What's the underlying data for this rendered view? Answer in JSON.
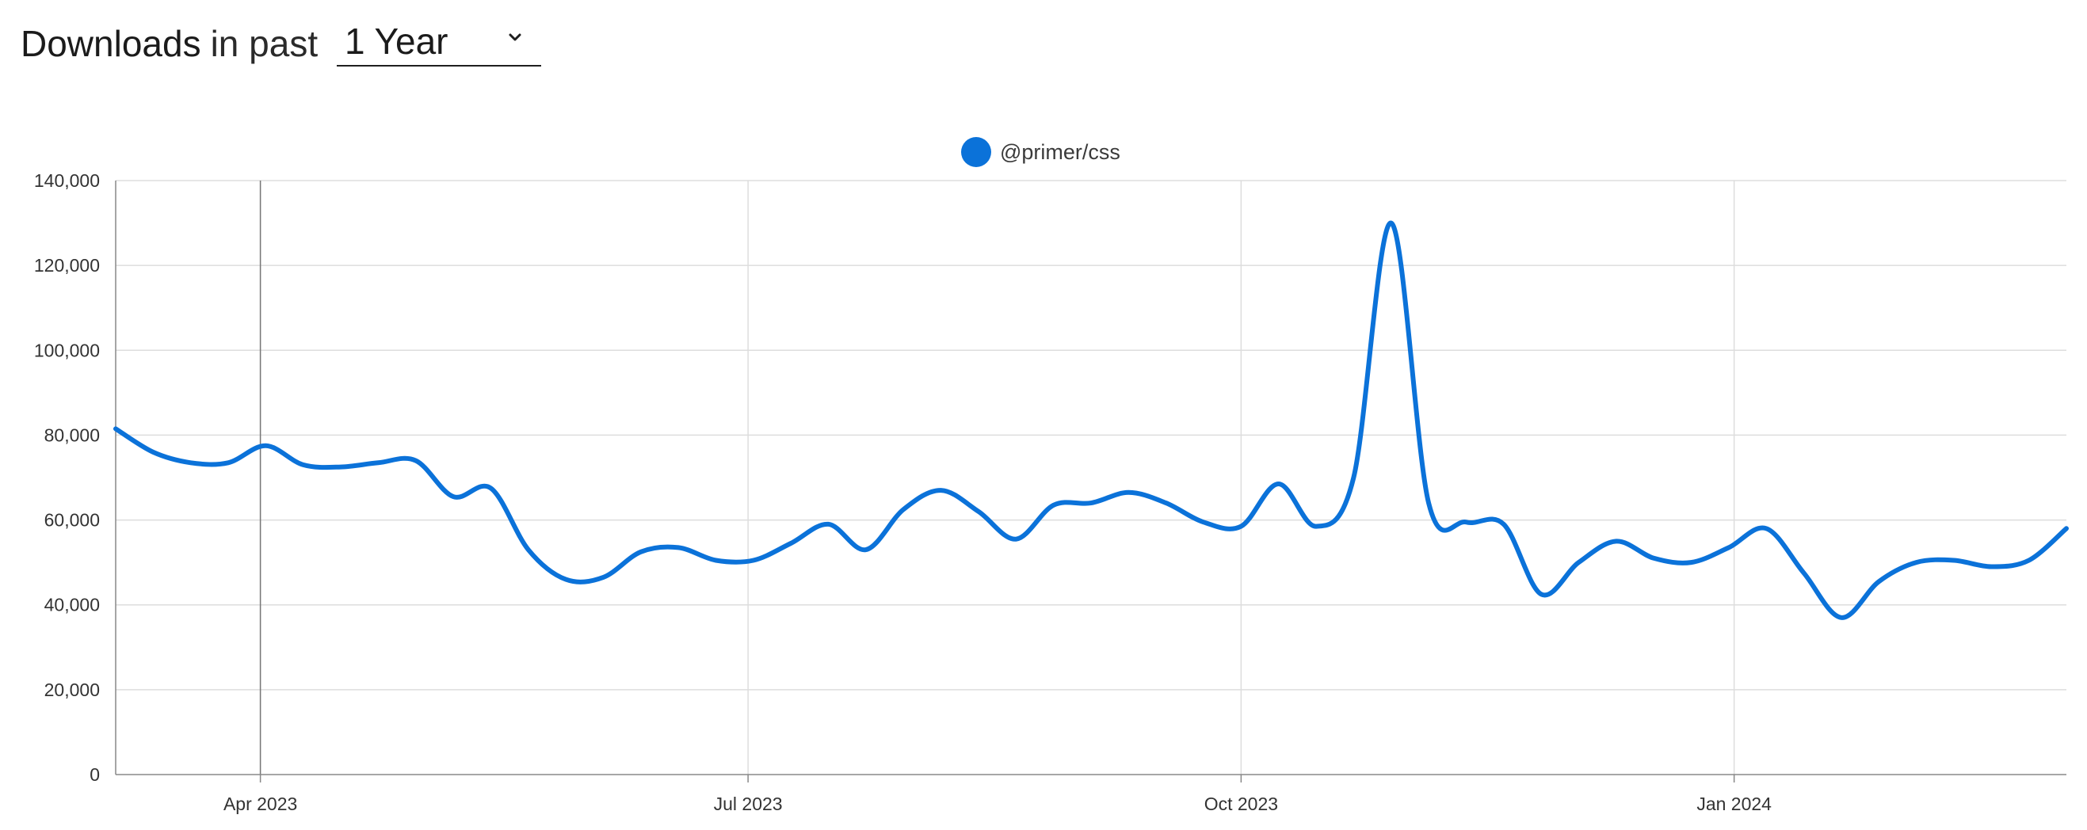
{
  "header": {
    "title_strong": "Downloads",
    "title_light": "in past",
    "period_selected": "1 Year"
  },
  "icons": {
    "dropdown": "chevron-down-icon",
    "legend_marker": "circle-marker"
  },
  "colors": {
    "series": "#0b72d9",
    "grid": "#dddddd",
    "axis": "#888888",
    "hover_line": "#777777"
  },
  "chart_data": {
    "type": "line",
    "title": "",
    "xlabel": "",
    "ylabel": "",
    "ylim": [
      0,
      140000
    ],
    "grid": true,
    "legend_placement": "top-center",
    "y_ticks": [
      {
        "value": 0,
        "label": "0"
      },
      {
        "value": 20000,
        "label": "20,000"
      },
      {
        "value": 40000,
        "label": "40,000"
      },
      {
        "value": 60000,
        "label": "60,000"
      },
      {
        "value": 80000,
        "label": "80,000"
      },
      {
        "value": 100000,
        "label": "100,000"
      },
      {
        "value": 120000,
        "label": "120,000"
      },
      {
        "value": 140000,
        "label": "140,000"
      }
    ],
    "x_range": [
      "2023-03-05",
      "2024-03-03"
    ],
    "x_ticks": [
      {
        "date": "2023-04-01",
        "label": "Apr 2023"
      },
      {
        "date": "2023-07-01",
        "label": "Jul 2023"
      },
      {
        "date": "2023-10-01",
        "label": "Oct 2023"
      },
      {
        "date": "2024-01-01",
        "label": "Jan 2024"
      }
    ],
    "hover_date": "2023-04-01",
    "series": [
      {
        "name": "@primer/css",
        "color": "#0b72d9",
        "points": [
          [
            "2023-03-05",
            81500
          ],
          [
            "2023-03-12",
            76000
          ],
          [
            "2023-03-19",
            73500
          ],
          [
            "2023-03-26",
            73500
          ],
          [
            "2023-04-02",
            77500
          ],
          [
            "2023-04-09",
            73000
          ],
          [
            "2023-04-16",
            72500
          ],
          [
            "2023-04-23",
            73500
          ],
          [
            "2023-04-30",
            74000
          ],
          [
            "2023-05-07",
            65500
          ],
          [
            "2023-05-14",
            67500
          ],
          [
            "2023-05-21",
            53000
          ],
          [
            "2023-05-28",
            46000
          ],
          [
            "2023-06-04",
            46500
          ],
          [
            "2023-06-11",
            52500
          ],
          [
            "2023-06-18",
            53500
          ],
          [
            "2023-06-25",
            50500
          ],
          [
            "2023-07-02",
            50500
          ],
          [
            "2023-07-09",
            54500
          ],
          [
            "2023-07-16",
            59000
          ],
          [
            "2023-07-23",
            53000
          ],
          [
            "2023-07-30",
            62500
          ],
          [
            "2023-08-06",
            67000
          ],
          [
            "2023-08-13",
            62000
          ],
          [
            "2023-08-20",
            55500
          ],
          [
            "2023-08-27",
            63500
          ],
          [
            "2023-09-03",
            64000
          ],
          [
            "2023-09-10",
            66500
          ],
          [
            "2023-09-17",
            64000
          ],
          [
            "2023-09-24",
            59500
          ],
          [
            "2023-10-01",
            58500
          ],
          [
            "2023-10-08",
            68500
          ],
          [
            "2023-10-15",
            58500
          ],
          [
            "2023-10-22",
            70000
          ],
          [
            "2023-10-29",
            130000
          ],
          [
            "2023-11-05",
            64000
          ],
          [
            "2023-11-12",
            59500
          ],
          [
            "2023-11-19",
            59000
          ],
          [
            "2023-11-26",
            42500
          ],
          [
            "2023-12-03",
            50000
          ],
          [
            "2023-12-10",
            55000
          ],
          [
            "2023-12-17",
            51000
          ],
          [
            "2023-12-24",
            50000
          ],
          [
            "2023-12-31",
            53500
          ],
          [
            "2024-01-07",
            58000
          ],
          [
            "2024-01-14",
            47500
          ],
          [
            "2024-01-21",
            37000
          ],
          [
            "2024-01-28",
            45500
          ],
          [
            "2024-02-04",
            50000
          ],
          [
            "2024-02-11",
            50500
          ],
          [
            "2024-02-18",
            49000
          ],
          [
            "2024-02-25",
            50500
          ],
          [
            "2024-03-03",
            58000
          ]
        ]
      }
    ]
  }
}
